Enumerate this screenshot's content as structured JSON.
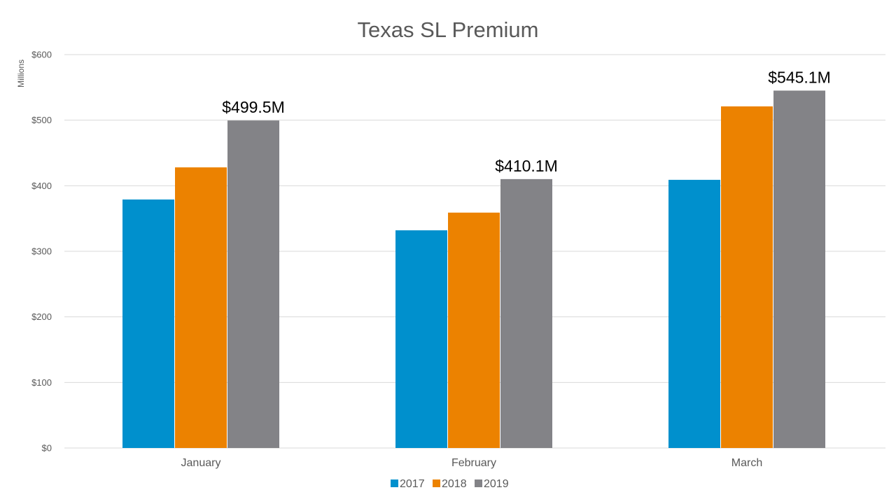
{
  "chart_data": {
    "type": "bar",
    "title": "Texas SL Premium",
    "ylabel": "Millions",
    "xlabel": "",
    "categories": [
      "January",
      "February",
      "March"
    ],
    "ylim": [
      0,
      600
    ],
    "yticks": [
      0,
      100,
      200,
      300,
      400,
      500,
      600
    ],
    "ytick_labels": [
      "$0",
      "$100",
      "$200",
      "$300",
      "$400",
      "$500",
      "$600"
    ],
    "grid": true,
    "legend": "bottom",
    "series": [
      {
        "name": "2017",
        "color": "#0090cd",
        "values": [
          379,
          332,
          409
        ]
      },
      {
        "name": "2018",
        "color": "#ec8200",
        "values": [
          428,
          359,
          521
        ]
      },
      {
        "name": "2019",
        "color": "#838387",
        "values": [
          499.5,
          410.1,
          545.1
        ]
      }
    ],
    "data_labels": [
      {
        "series": "2019",
        "category": "January",
        "text": "$499.5M"
      },
      {
        "series": "2019",
        "category": "February",
        "text": "$410.1M"
      },
      {
        "series": "2019",
        "category": "March",
        "text": "$545.1M"
      }
    ]
  }
}
